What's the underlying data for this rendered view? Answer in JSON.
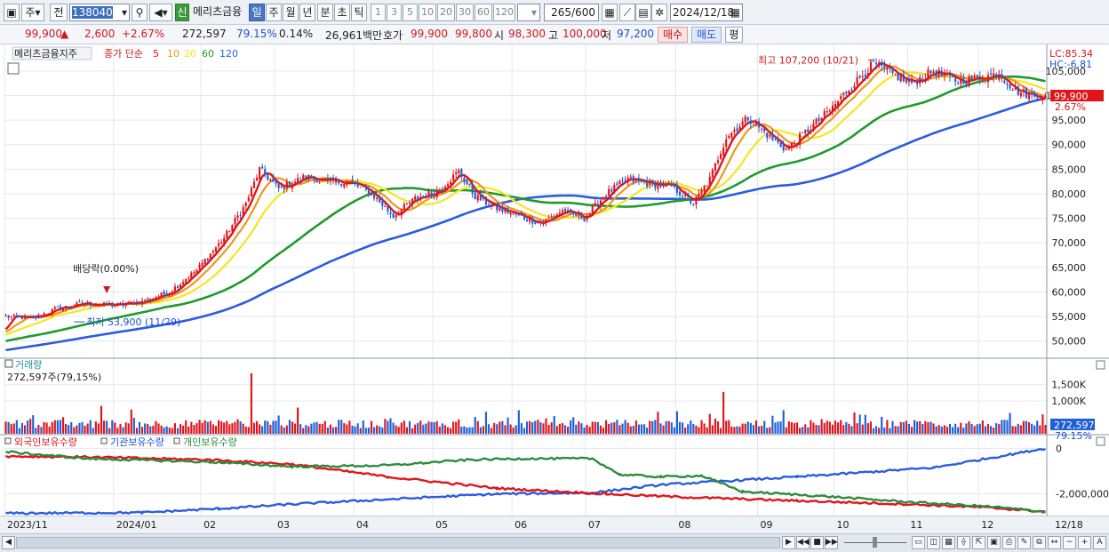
{
  "toolbar": {
    "market_label": "주",
    "period_label": "전",
    "code": "138040",
    "badge_new": "신",
    "stock_name": "메리츠금융",
    "period_buttons": [
      "일",
      "주",
      "월",
      "년",
      "분",
      "초",
      "틱"
    ],
    "number_buttons": [
      "1",
      "3",
      "5",
      "10",
      "20",
      "30",
      "60",
      "120"
    ],
    "count_value": "265",
    "count_total": "/600",
    "date_value": "2024/12/18"
  },
  "quote": {
    "price": "99,900",
    "arrow": "▲",
    "change": "2,600",
    "change_pct": "+2.67%",
    "volume": "272,597",
    "vol_ratio": "79.15%",
    "turnover": "0.14%",
    "amount": "26,961백만",
    "bid_label": "호가",
    "ask_price": "99,900",
    "bid_price": "99,800",
    "open_label": "시",
    "open_value": "98,300",
    "high_label": "고",
    "high_value": "100,000",
    "low_label": "저",
    "low_value": "97,200",
    "buy_button": "매수",
    "sell_button": "매도",
    "eval_button": "평"
  },
  "colors": {
    "up": "#e0151b",
    "down": "#1f5fd8",
    "ma5": "#e0151b",
    "ma10": "#f0961e",
    "ma20": "#f5e61e",
    "ma60": "#1f9a2b",
    "ma120": "#2a5ce0",
    "foreign": "#2a5ce0",
    "institution": "#e0151b",
    "individual": "#2e8b3e"
  },
  "chart_data": [
    {
      "type": "candlestick",
      "title": "메리츠금융지주",
      "legend_prefix": "종가 단순",
      "legend": [
        "5",
        "10",
        "20",
        "60",
        "120"
      ],
      "y_ticks": [
        "105,000",
        "100,000",
        "95,000",
        "90,000",
        "85,000",
        "80,000",
        "75,000",
        "70,000",
        "65,000",
        "60,000",
        "55,000",
        "50,000"
      ],
      "ylim": [
        46500,
        109500
      ],
      "x_ticks": [
        "2023/11",
        "2024/01",
        "02",
        "03",
        "04",
        "05",
        "06",
        "07",
        "08",
        "09",
        "10",
        "11",
        "12",
        "12/18"
      ],
      "x_tick_positions": [
        0,
        40,
        72,
        99,
        128,
        157,
        186,
        213,
        246,
        276,
        304,
        331,
        357,
        393
      ],
      "x_count": 382,
      "side_labels": {
        "lc": "LC:85.34",
        "hc": "HC:-6.81",
        "price": "99,900",
        "pct": "2.67%"
      },
      "annotations": {
        "high": "최고 107,200 (10/21)",
        "low": "최저 53,900 (11/29)",
        "dividend": "배당락(0.00%)"
      },
      "anchors": [
        {
          "i": 0,
          "v": 55000
        },
        {
          "i": 10,
          "v": 54600
        },
        {
          "i": 18,
          "v": 56500
        },
        {
          "i": 28,
          "v": 57600
        },
        {
          "i": 40,
          "v": 57300
        },
        {
          "i": 50,
          "v": 58000
        },
        {
          "i": 60,
          "v": 60000
        },
        {
          "i": 70,
          "v": 64500
        },
        {
          "i": 80,
          "v": 71000
        },
        {
          "i": 88,
          "v": 78000
        },
        {
          "i": 93,
          "v": 85000
        },
        {
          "i": 100,
          "v": 81000
        },
        {
          "i": 110,
          "v": 83500
        },
        {
          "i": 118,
          "v": 82500
        },
        {
          "i": 126,
          "v": 82300
        },
        {
          "i": 134,
          "v": 80000
        },
        {
          "i": 142,
          "v": 75500
        },
        {
          "i": 150,
          "v": 79000
        },
        {
          "i": 158,
          "v": 80500
        },
        {
          "i": 166,
          "v": 84500
        },
        {
          "i": 172,
          "v": 79500
        },
        {
          "i": 180,
          "v": 77000
        },
        {
          "i": 188,
          "v": 75500
        },
        {
          "i": 196,
          "v": 74000
        },
        {
          "i": 204,
          "v": 76500
        },
        {
          "i": 212,
          "v": 75000
        },
        {
          "i": 220,
          "v": 80000
        },
        {
          "i": 228,
          "v": 83000
        },
        {
          "i": 236,
          "v": 82000
        },
        {
          "i": 244,
          "v": 81500
        },
        {
          "i": 252,
          "v": 78000
        },
        {
          "i": 258,
          "v": 83000
        },
        {
          "i": 264,
          "v": 91500
        },
        {
          "i": 272,
          "v": 95500
        },
        {
          "i": 280,
          "v": 91500
        },
        {
          "i": 286,
          "v": 89000
        },
        {
          "i": 294,
          "v": 93000
        },
        {
          "i": 302,
          "v": 97000
        },
        {
          "i": 310,
          "v": 102000
        },
        {
          "i": 318,
          "v": 106500
        },
        {
          "i": 326,
          "v": 104000
        },
        {
          "i": 332,
          "v": 102500
        },
        {
          "i": 340,
          "v": 105000
        },
        {
          "i": 348,
          "v": 103000
        },
        {
          "i": 356,
          "v": 103500
        },
        {
          "i": 364,
          "v": 104500
        },
        {
          "i": 370,
          "v": 101000
        },
        {
          "i": 376,
          "v": 100000
        },
        {
          "i": 381,
          "v": 99900
        }
      ]
    },
    {
      "type": "bar",
      "title": "거래량",
      "current": "272,597주(79,15%)",
      "y_ticks": [
        "1,500K",
        "1,000K"
      ],
      "side_label": "272,597",
      "side_pct": "79.15%"
    },
    {
      "type": "line",
      "series_names": [
        "외국인보유수량",
        "기관보유수량",
        "개인보유수량"
      ],
      "y_ticks": [
        "0",
        "-2,000,000"
      ],
      "ylim": [
        -2950000,
        250000
      ],
      "series": [
        {
          "name": "외국인보유수량",
          "color": "#2a5ce0",
          "points": [
            [
              0,
              -2850000
            ],
            [
              50,
              -2820000
            ],
            [
              78,
              -2650000
            ],
            [
              105,
              -2450000
            ],
            [
              180,
              -2000000
            ],
            [
              215,
              -1950000
            ],
            [
              240,
              -1600000
            ],
            [
              290,
              -1250000
            ],
            [
              340,
              -850000
            ],
            [
              381,
              0
            ]
          ]
        },
        {
          "name": "기관보유수량",
          "color": "#e0151b",
          "points": [
            [
              0,
              -350000
            ],
            [
              30,
              -380000
            ],
            [
              75,
              -500000
            ],
            [
              105,
              -700000
            ],
            [
              140,
              -1250000
            ],
            [
              180,
              -1750000
            ],
            [
              220,
              -2000000
            ],
            [
              250,
              -2150000
            ],
            [
              290,
              -2300000
            ],
            [
              330,
              -2450000
            ],
            [
              360,
              -2600000
            ],
            [
              381,
              -2780000
            ]
          ]
        },
        {
          "name": "개인보유수량",
          "color": "#2e8b3e",
          "points": [
            [
              0,
              -150000
            ],
            [
              30,
              -450000
            ],
            [
              75,
              -600000
            ],
            [
              105,
              -800000
            ],
            [
              140,
              -750000
            ],
            [
              170,
              -500000
            ],
            [
              190,
              -450000
            ],
            [
              215,
              -450000
            ],
            [
              225,
              -1150000
            ],
            [
              240,
              -1250000
            ],
            [
              255,
              -1200000
            ],
            [
              270,
              -1900000
            ],
            [
              300,
              -2100000
            ],
            [
              330,
              -2350000
            ],
            [
              360,
              -2550000
            ],
            [
              381,
              -2780000
            ]
          ]
        }
      ]
    }
  ]
}
